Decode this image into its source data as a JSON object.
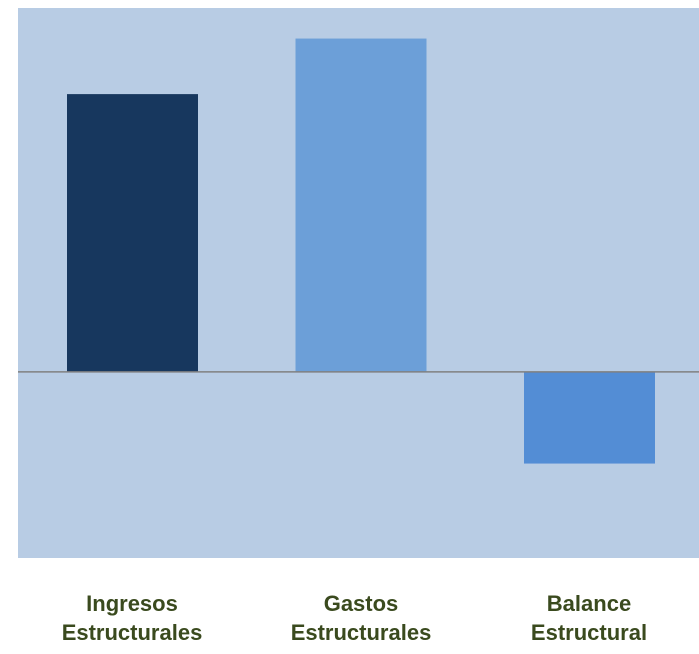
{
  "chart_data": {
    "type": "bar",
    "categories": [
      "Ingresos\nEstructurales",
      "Gastos\nEstructurales",
      "Balance\nEstructural"
    ],
    "values": [
      100,
      120,
      -33
    ],
    "ylim": [
      -67,
      131
    ],
    "grid": false,
    "legend": "none",
    "title": "",
    "xlabel": "",
    "ylabel": ""
  },
  "colors": {
    "plot_background": "#b8cce4",
    "bars": [
      "#17375e",
      "#6c9fd8",
      "#538dd5"
    ],
    "zero_line": "#808080",
    "label_text": "#3a4a1e"
  }
}
